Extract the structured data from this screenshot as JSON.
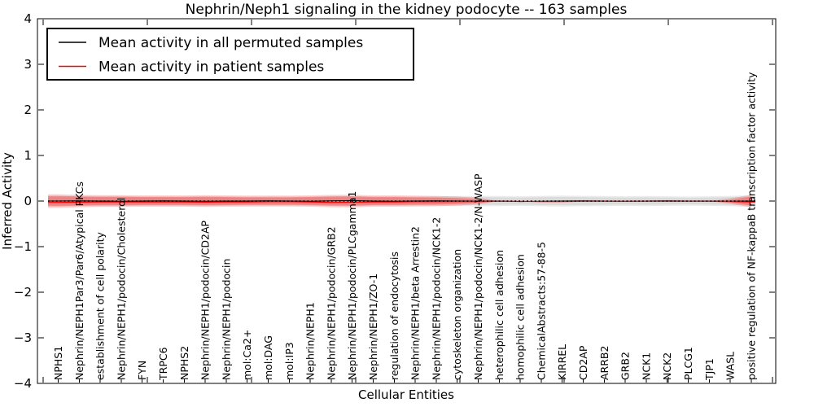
{
  "chart_data": {
    "type": "line",
    "title": "Nephrin/Neph1 signaling in the kidney podocyte -- 163 samples",
    "xlabel": "Cellular Entities",
    "ylabel": "Inferred Activity",
    "ylim": [
      -4,
      4
    ],
    "yticks": [
      4,
      3,
      2,
      1,
      0,
      -1,
      -2,
      -3,
      -4
    ],
    "ytick_labels": [
      "4",
      "3",
      "2",
      "1",
      "0",
      "−1",
      "−2",
      "−3",
      "−4"
    ],
    "grid": false,
    "legend_position": "upper left",
    "categories": [
      "NPHS1",
      "Nephrin/NEPH1Par3/Par6/Atypical PKCs",
      "establishment of cell polarity",
      "Nephrin/NEPH1/podocin/Cholesterol",
      "FYN",
      "TRPC6",
      "NPHS2",
      "Nephrin/NEPH1/podocin/CD2AP",
      "Nephrin/NEPH1/podocin",
      "mol:Ca2+",
      "mol:DAG",
      "mol:IP3",
      "Nephrin/NEPH1",
      "Nephrin/NEPH1/podocin/GRB2",
      "Nephrin/NEPH1/podocin/PLCgamma1",
      "Nephrin/NEPH1/ZO-1",
      "regulation of endocytosis",
      "Nephrin/NEPH1/beta Arrestin2",
      "Nephrin/NEPH1/podocin/NCK1-2",
      "cytoskeleton organization",
      "Nephrin/NEPH1/podocin/NCK1-2/N-WASP",
      "heterophilic cell adhesion",
      "homophilic cell adhesion",
      "ChemicalAbstracts:57-88-5",
      "KIRREL",
      "CD2AP",
      "ARRB2",
      "GRB2",
      "NCK1",
      "NCK2",
      "PLCG1",
      "TJP1",
      "WASL",
      "positive regulation of NF-kappaB transcription factor activity"
    ],
    "series": [
      {
        "name": "Mean activity in all permuted samples",
        "color": "#000000",
        "style": "solid",
        "values": [
          0,
          0.005,
          0,
          -0.005,
          0,
          0.005,
          0,
          -0.005,
          0,
          0,
          0.005,
          0,
          -0.005,
          0.005,
          0.01,
          0,
          -0.005,
          0,
          0.005,
          0,
          -0.005,
          0,
          -0.01,
          -0.005,
          0,
          0.005,
          0,
          -0.005,
          0,
          0.005,
          0,
          0,
          -0.005,
          0
        ]
      },
      {
        "name": "Mean activity in patient samples",
        "color": "#ff0000",
        "style": "solid",
        "values": [
          -0.03,
          -0.025,
          -0.02,
          -0.02,
          -0.02,
          -0.02,
          -0.02,
          -0.025,
          -0.02,
          -0.02,
          -0.015,
          -0.015,
          -0.02,
          -0.03,
          -0.025,
          -0.02,
          -0.02,
          -0.015,
          -0.015,
          -0.01,
          -0.01,
          -0.005,
          -0.005,
          -0.01,
          -0.01,
          -0.005,
          -0.005,
          -0.005,
          -0.005,
          -0.005,
          -0.005,
          -0.005,
          -0.01,
          -0.02
        ]
      }
    ],
    "bands": [
      {
        "name": "permuted-samples-spread",
        "color": "#000000",
        "half_widths": [
          0.085,
          0.085,
          0.08,
          0.08,
          0.075,
          0.075,
          0.075,
          0.08,
          0.075,
          0.07,
          0.07,
          0.07,
          0.075,
          0.08,
          0.08,
          0.075,
          0.075,
          0.07,
          0.075,
          0.08,
          0.085,
          0.08,
          0.075,
          0.085,
          0.09,
          0.085,
          0.08,
          0.075,
          0.08,
          0.075,
          0.07,
          0.075,
          0.085,
          0.1
        ]
      },
      {
        "name": "patient-samples-spread",
        "color": "#ff0000",
        "half_widths": [
          0.115,
          0.1,
          0.095,
          0.095,
          0.09,
          0.09,
          0.09,
          0.095,
          0.09,
          0.085,
          0.085,
          0.085,
          0.09,
          0.1,
          0.105,
          0.09,
          0.09,
          0.085,
          0.08,
          0.065,
          0.04,
          0,
          0,
          0,
          0,
          0,
          0,
          0,
          0,
          0,
          0,
          0,
          0.025,
          0.1
        ]
      }
    ],
    "zero_line": {
      "y": 0,
      "style": "dotted",
      "color": "#000000"
    }
  }
}
